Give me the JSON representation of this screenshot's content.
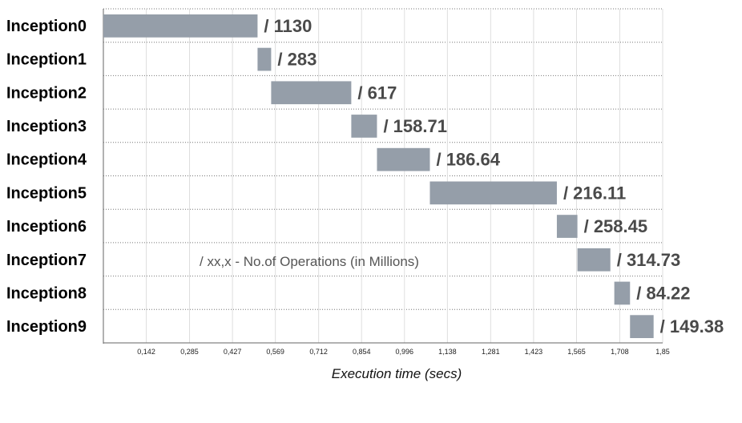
{
  "chart_data": {
    "type": "bar",
    "subtype": "gantt",
    "categories": [
      "Inception0",
      "Inception1",
      "Inception2",
      "Inception3",
      "Inception4",
      "Inception5",
      "Inception6",
      "Inception7",
      "Inception8",
      "Inception9"
    ],
    "start": [
      0.0,
      0.51,
      0.555,
      0.82,
      0.905,
      1.08,
      1.5,
      1.568,
      1.69,
      1.742
    ],
    "end": [
      0.51,
      0.555,
      0.82,
      0.905,
      1.08,
      1.5,
      1.568,
      1.677,
      1.742,
      1.82
    ],
    "value_labels": [
      "/ 1130",
      "/ 283",
      "/ 617",
      "/ 158.71",
      "/ 186.64",
      "/ 216.11",
      "/ 258.45",
      "/ 314.73",
      "/ 84.22",
      "/ 149.38"
    ],
    "xticks": [
      "0,142",
      "0,285",
      "0,427",
      "0,569",
      "0,712",
      "0,854",
      "0,996",
      "1,138",
      "1,281",
      "1,423",
      "1,565",
      "1,708",
      "1,85"
    ],
    "xtick_values": [
      0.142,
      0.285,
      0.427,
      0.569,
      0.712,
      0.854,
      0.996,
      1.138,
      1.281,
      1.423,
      1.565,
      1.708,
      1.85
    ],
    "xlim": [
      0,
      1.85
    ],
    "xlabel": "Execution time (secs)",
    "annotation": "/ xx,x -  No.of Operations (in Millions)",
    "grid": true,
    "bar_color": "#959ea9"
  }
}
